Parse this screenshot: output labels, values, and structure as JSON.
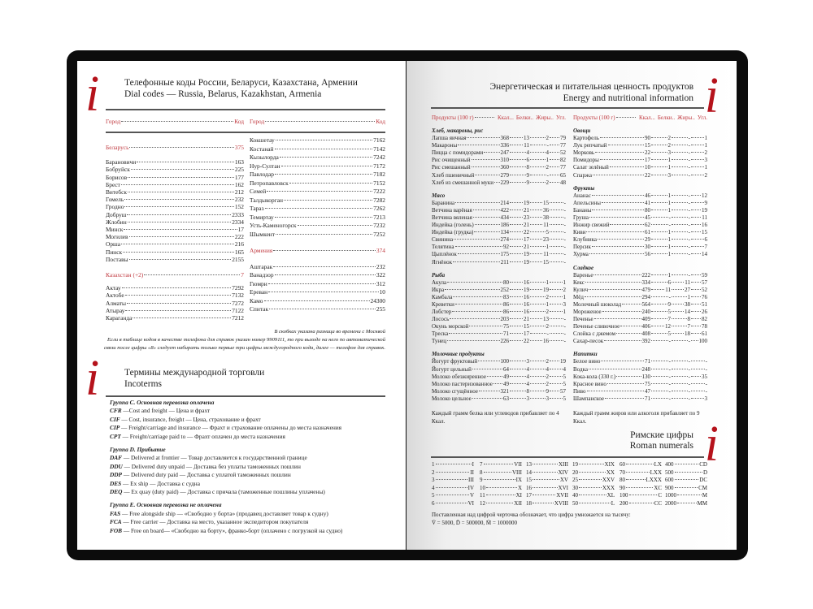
{
  "dial": {
    "logo": "i",
    "title_ru": "Телефонные коды России, Беларуси, Казахстана, Армении",
    "title_en": "Dial codes — Russia, Belarus, Kazakhstan, Armenia",
    "header_city": "Город",
    "header_code": "Код",
    "col1": [
      {
        "type": "country",
        "name": "Беларусь",
        "code": "375"
      },
      {
        "name": "Барановичи",
        "code": "163"
      },
      {
        "name": "Бобруйск",
        "code": "225"
      },
      {
        "name": "Борисов",
        "code": "177"
      },
      {
        "name": "Брест",
        "code": "162"
      },
      {
        "name": "Витебск",
        "code": "212"
      },
      {
        "name": "Гомель",
        "code": "232"
      },
      {
        "name": "Гродно",
        "code": "152"
      },
      {
        "name": "Добруш",
        "code": "2333"
      },
      {
        "name": "Жлобин",
        "code": "2334"
      },
      {
        "name": "Минск",
        "code": "17"
      },
      {
        "name": "Могилев",
        "code": "222"
      },
      {
        "name": "Орша",
        "code": "216"
      },
      {
        "name": "Пинск",
        "code": "165"
      },
      {
        "name": "Поставы",
        "code": "2155"
      },
      {
        "type": "country",
        "name": "Казахстан (+2)",
        "code": "7"
      },
      {
        "name": "Актау",
        "code": "7292"
      },
      {
        "name": "Актобе",
        "code": "7132"
      },
      {
        "name": "Алматы",
        "code": "7272"
      },
      {
        "name": "Атырау",
        "code": "7122"
      },
      {
        "name": "Караганда",
        "code": "7212"
      }
    ],
    "col2": [
      {
        "name": "Кокшетау",
        "code": "7162"
      },
      {
        "name": "Костанай",
        "code": "7142"
      },
      {
        "name": "Кызылорда",
        "code": "7242"
      },
      {
        "name": "Нур-Султан",
        "code": "7172"
      },
      {
        "name": "Павлодар",
        "code": "7182"
      },
      {
        "name": "Петропавловск",
        "code": "7152"
      },
      {
        "name": "Семей",
        "code": "7222"
      },
      {
        "name": "Талдыкорган",
        "code": "7282"
      },
      {
        "name": "Тараз",
        "code": "7262"
      },
      {
        "name": "Темиртау",
        "code": "7213"
      },
      {
        "name": "Усть-Каменогорск",
        "code": "7232"
      },
      {
        "name": "Шымкент",
        "code": "7252"
      },
      {
        "type": "country",
        "name": "Армения",
        "code": "374"
      },
      {
        "name": "Аштарак",
        "code": "232"
      },
      {
        "name": "Ванадзор",
        "code": "322"
      },
      {
        "name": "Гюмри",
        "code": "312"
      },
      {
        "name": "Ереван",
        "code": "10"
      },
      {
        "name": "Камо",
        "code": "24300"
      },
      {
        "name": "Спитак",
        "code": "255"
      }
    ],
    "notes": [
      "В скобках указана разница во времени с Москвой",
      "Если в таблице кодов в качестве телефона для справок указан номер 9909111, то при выходе на него по автоматической",
      "связи после цифры «8» следует набирать только первые три цифры междугородного кода, далее — телефон для справок."
    ]
  },
  "incoterms": {
    "logo": "i",
    "title_ru": "Термины международной торговли",
    "title_en": "Incoterms",
    "groups": [
      {
        "title": "Группа С. Основная перевозка оплачена",
        "items": [
          {
            "code": "CFR",
            "text": " —Cost and freight — Цена и фрахт"
          },
          {
            "code": "CIF",
            "text": " — Cost, insurance, freight — Цена, страхование и фрахт"
          },
          {
            "code": "CIP",
            "text": " — Freight/carriage and insurance — Фрахт и страхование оплачены до места назначения"
          },
          {
            "code": "CPT",
            "text": " — Freight/carriage paid to — Фрахт оплачен до места назначения"
          }
        ]
      },
      {
        "title": "Группа D. Прибытие",
        "items": [
          {
            "code": "DAF",
            "text": " — Delivered at frontier — Товар доставляется к государственной границе"
          },
          {
            "code": "DDU",
            "text": " — Delivered duty unpaid — Доставка без уплаты таможенных пошлин"
          },
          {
            "code": "DDP",
            "text": " — Delivered duty paid — Доставка с уплатой таможенных пошлин"
          },
          {
            "code": "DES",
            "text": " — Ex ship — Доставка с судна"
          },
          {
            "code": "DEQ",
            "text": " — Ex quay (duty paid) — Доставка с причала (таможенные пошлины уплачены)"
          }
        ]
      },
      {
        "title": "Группа E. Основная перевозка не оплачена",
        "items": [
          {
            "code": "FAS",
            "text": " — Free alongside ship — «Свободно у борта» (продавец доставляет товар к судну)"
          },
          {
            "code": "FCA",
            "text": " — Free carrier — Доставка на место, указанное экспедитором покупателя"
          },
          {
            "code": "FOB",
            "text": " — Free on board— «Свободно на борту», франко-борт (оплачено с погрузкой на судно)"
          }
        ]
      }
    ]
  },
  "nutrition": {
    "logo": "i",
    "title_ru": "Энергетическая и питательная ценность продуктов",
    "title_en": "Energy and nutritional information",
    "headers": [
      "Продукты (100 г)",
      "Ккал.",
      "Белки",
      "Жиры",
      "Угл."
    ],
    "columns": [
      {
        "categories": [
          {
            "title": "Хлеб, макароны, рис",
            "rows": [
              [
                "Лапша яичная",
                "368",
                "13",
                "2",
                "79"
              ],
              [
                "Макароны",
                "336",
                "11",
                "-",
                "77"
              ],
              [
                "Пицца с помидорами",
                "247",
                "4",
                "4",
                "52"
              ],
              [
                "Рис очищенный",
                "310",
                "6",
                "1",
                "82"
              ],
              [
                "Рис смешанный",
                "360",
                "8",
                "2",
                "77"
              ],
              [
                "Хлеб пшеничный",
                "279",
                "9",
                "-",
                "65"
              ],
              [
                "Хлеб из смешанной муки",
                "229",
                "9",
                "2",
                "48"
              ]
            ]
          },
          {
            "title": "Мясо",
            "rows": [
              [
                "Баранина",
                "214",
                "19",
                "15",
                "-"
              ],
              [
                "Ветчина варёная",
                "422",
                "21",
                "36",
                "-"
              ],
              [
                "Ветчина вяленая",
                "434",
                "23",
                "38",
                "-"
              ],
              [
                "Индейка (голень)",
                "186",
                "21",
                "11",
                "-"
              ],
              [
                "Индейка (грудка)",
                "134",
                "22",
                "5",
                "-"
              ],
              [
                "Свинина",
                "274",
                "17",
                "23",
                "-"
              ],
              [
                "Телятина",
                "92",
                "21",
                "1",
                "-"
              ],
              [
                "Цыплёнок",
                "175",
                "19",
                "11",
                "-"
              ],
              [
                "Ягнёнок",
                "211",
                "19",
                "15",
                "-"
              ]
            ]
          },
          {
            "title": "Рыба",
            "rows": [
              [
                "Акула",
                "80",
                "16",
                "1",
                "1"
              ],
              [
                "Икра",
                "252",
                "19",
                "19",
                "2"
              ],
              [
                "Камбала",
                "83",
                "16",
                "2",
                "1"
              ],
              [
                "Креветки",
                "86",
                "16",
                "1",
                "3"
              ],
              [
                "Лобстер",
                "86",
                "16",
                "2",
                "1"
              ],
              [
                "Лосось",
                "203",
                "21",
                "13",
                "-"
              ],
              [
                "Окунь морской",
                "75",
                "15",
                "2",
                "-"
              ],
              [
                "Треска",
                "71",
                "17",
                "-",
                "-"
              ],
              [
                "Тунец",
                "226",
                "22",
                "16",
                "-"
              ]
            ]
          },
          {
            "title": "Молочные продукты",
            "rows": [
              [
                "Йогурт фруктовый",
                "100",
                "3",
                "2",
                "19"
              ],
              [
                "Йогурт цельный",
                "64",
                "4",
                "4",
                "4"
              ],
              [
                "Молоко обезжиренное",
                "49",
                "4",
                "2",
                "5"
              ],
              [
                "Молоко пастеризованное",
                "49",
                "4",
                "2",
                "5"
              ],
              [
                "Молоко сгущённое",
                "321",
                "8",
                "9",
                "57"
              ],
              [
                "Молоко цельное",
                "63",
                "3",
                "3",
                "5"
              ]
            ]
          }
        ],
        "footnote": "Каждый грамм белка или углеводов прибавляет по 4 Ккал."
      },
      {
        "categories": [
          {
            "title": "Овощи",
            "rows": [
              [
                "Картофель",
                "90",
                "2",
                "-",
                "1"
              ],
              [
                "Лук репчатый",
                "15",
                "2",
                "-",
                "1"
              ],
              [
                "Морковь",
                "22",
                "3",
                "-",
                "2"
              ],
              [
                "Помидоры",
                "17",
                "1",
                "-",
                "3"
              ],
              [
                "Салат зелёный",
                "10",
                "1",
                "-",
                "1"
              ],
              [
                "Спаржа",
                "22",
                "3",
                "-",
                "2"
              ]
            ]
          },
          {
            "title": "Фрукты",
            "rows": [
              [
                "Ананас",
                "46",
                "1",
                "-",
                "12"
              ],
              [
                "Апельсины",
                "41",
                "1",
                "-",
                "9"
              ],
              [
                "Бананы",
                "80",
                "1",
                "-",
                "19"
              ],
              [
                "Груша",
                "45",
                "-",
                "-",
                "11"
              ],
              [
                "Инжир свежий",
                "62",
                "-",
                "-",
                "16"
              ],
              [
                "Киви",
                "61",
                "1",
                "-",
                "15"
              ],
              [
                "Клубника",
                "29",
                "1",
                "-",
                "6"
              ],
              [
                "Персик",
                "30",
                "1",
                "-",
                "7"
              ],
              [
                "Хурма",
                "56",
                "1",
                "-",
                "14"
              ]
            ]
          },
          {
            "title": "Сладкое",
            "rows": [
              [
                "Варенье",
                "222",
                "1",
                "-",
                "59"
              ],
              [
                "Кекс",
                "334",
                "6",
                "11",
                "57"
              ],
              [
                "Кулич",
                "479",
                "11",
                "27",
                "52"
              ],
              [
                "Мёд",
                "294",
                "-",
                "1",
                "76"
              ],
              [
                "Молочный шоколад",
                "564",
                "9",
                "38",
                "51"
              ],
              [
                "Мороженое",
                "240",
                "5",
                "14",
                "26"
              ],
              [
                "Печенье",
                "409",
                "7",
                "8",
                "82"
              ],
              [
                "Печенье сливочное",
                "406",
                "12",
                "7",
                "78"
              ],
              [
                "Слойка с джемом",
                "408",
                "5",
                "18",
                "61"
              ],
              [
                "Сахар-песок",
                "392",
                "-",
                "-",
                "100"
              ]
            ]
          },
          {
            "title": "Напитки",
            "rows": [
              [
                "Белое вино",
                "71",
                "-",
                "-",
                "-"
              ],
              [
                "Водка",
                "248",
                "-",
                "-",
                "-"
              ],
              [
                "Кока-кола (330 г.)",
                "130",
                "-",
                "-",
                "35"
              ],
              [
                "Красное вино",
                "75",
                "-",
                "-",
                "-"
              ],
              [
                "Пиво",
                "47",
                "-",
                "-",
                "-"
              ],
              [
                "Шампанское",
                "71",
                "-",
                "-",
                "3"
              ]
            ]
          }
        ],
        "footnote": "Каждый грамм жиров или алкоголя прибавляет по 9 Ккал."
      }
    ]
  },
  "roman": {
    "logo": "i",
    "title_ru": "Римские цифры",
    "title_en": "Roman numerals",
    "columns": [
      [
        [
          "1",
          "I"
        ],
        [
          "2",
          "II"
        ],
        [
          "3",
          "III"
        ],
        [
          "4",
          "IV"
        ],
        [
          "5",
          "V"
        ],
        [
          "6",
          "VI"
        ]
      ],
      [
        [
          "7",
          "VII"
        ],
        [
          "8",
          "VIII"
        ],
        [
          "9",
          "IX"
        ],
        [
          "10",
          "X"
        ],
        [
          "11",
          "XI"
        ],
        [
          "12",
          "XII"
        ]
      ],
      [
        [
          "13",
          "XIII"
        ],
        [
          "14",
          "XIV"
        ],
        [
          "15",
          "XV"
        ],
        [
          "16",
          "XVI"
        ],
        [
          "17",
          "XVII"
        ],
        [
          "18",
          "XVIII"
        ]
      ],
      [
        [
          "19",
          "XIX"
        ],
        [
          "20",
          "XX"
        ],
        [
          "25",
          "XXV"
        ],
        [
          "30",
          "XXX"
        ],
        [
          "40",
          "XL"
        ],
        [
          "50",
          "L"
        ]
      ],
      [
        [
          "60",
          "LX"
        ],
        [
          "70",
          "LXX"
        ],
        [
          "80",
          "LXXX"
        ],
        [
          "90",
          "XC"
        ],
        [
          "100",
          "C"
        ],
        [
          "200",
          "CC"
        ]
      ],
      [
        [
          "400",
          "CD"
        ],
        [
          "500",
          "D"
        ],
        [
          "600",
          "DC"
        ],
        [
          "900",
          "CM"
        ],
        [
          "1000",
          "M"
        ],
        [
          "2000",
          "MM"
        ]
      ]
    ],
    "note": "Поставленная над цифрой черточка обозначает, что цифра умножается на тысячу:",
    "examples": "V̄ = 5000, D̄ = 500000, M̄ = 1000000"
  },
  "colors": {
    "accent": "#b5121b",
    "frame": "#0c0c0c"
  }
}
